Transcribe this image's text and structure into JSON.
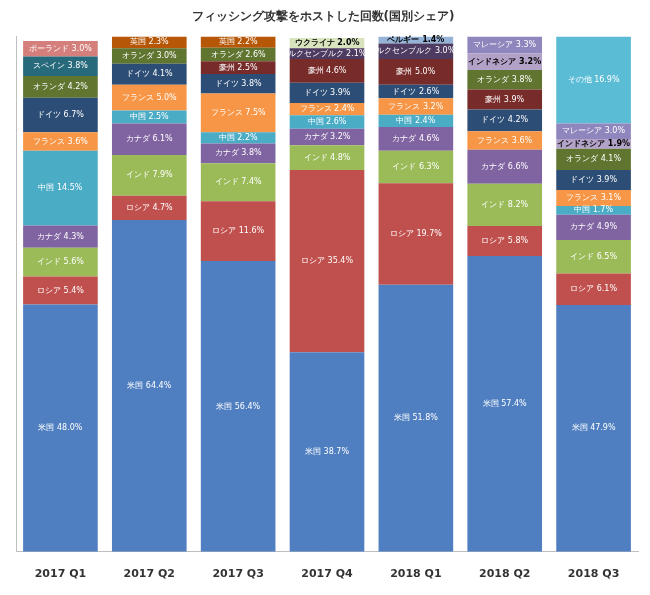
{
  "chart_data": {
    "type": "bar",
    "title": "フィッシング攻撃をホストした回数(国別シェア)",
    "categories": [
      "2017 Q1",
      "2017 Q2",
      "2017 Q3",
      "2017 Q4",
      "2018 Q1",
      "2018 Q2",
      "2018 Q3"
    ],
    "stacked": true,
    "data_labels": true,
    "grid": false,
    "tick_labels": "x",
    "ylim": [
      0,
      100
    ],
    "yticks": [
      0,
      100
    ],
    "series": [
      {
        "name": "米国",
        "color": "#4f7fc0",
        "values": [
          48.0,
          64.4,
          56.4,
          38.7,
          51.8,
          57.4,
          47.9
        ],
        "value_labels": [
          "米国 48.0%",
          "米国 64.4%",
          "米国 56.4%",
          "米国 38.7%",
          "米国 51.8%",
          "米国 57.4%",
          "米国 47.9%"
        ]
      },
      {
        "name": "ロシア",
        "color": "#c0504d",
        "values": [
          5.4,
          4.7,
          11.6,
          35.4,
          19.7,
          5.8,
          6.1
        ],
        "value_labels": [
          "ロシア 5.4%",
          "ロシア 4.7%",
          "ロシア 11.6%",
          "ロシア 35.4%",
          "ロシア 19.7%",
          "ロシア 5.8%",
          "ロシア 6.1%"
        ]
      },
      {
        "name": "インド",
        "color": "#9bbb59",
        "values": [
          5.6,
          7.9,
          7.4,
          4.8,
          6.3,
          8.2,
          6.5
        ],
        "value_labels": [
          "インド 5.6%",
          "インド 7.9%",
          "インド 7.4%",
          "インド 4.8%",
          "インド 6.3%",
          "インド 8.2%",
          "インド 6.5%"
        ]
      },
      {
        "name": "カナダ",
        "color": "#8064a2",
        "values": [
          4.3,
          6.1,
          3.8,
          3.2,
          4.6,
          6.6,
          4.9
        ],
        "value_labels": [
          "カナダ 4.3%",
          "カナダ 6.1%",
          "カナダ 3.8%",
          "カナダ 3.2%",
          "カナダ 4.6%",
          "カナダ 6.6%",
          "カナダ 4.9%"
        ]
      },
      {
        "name": "中国",
        "color": "#4bacc6",
        "values": [
          14.5,
          2.5,
          2.2,
          2.6,
          2.4,
          null,
          1.7
        ],
        "value_labels": [
          "中国 14.5%",
          "中国 2.5%",
          "中国 2.2%",
          "中国 2.6%",
          "中国 2.4%",
          null,
          "中国 1.7%"
        ]
      },
      {
        "name": "フランス",
        "color": "#f79646",
        "values": [
          3.6,
          5.0,
          7.5,
          2.4,
          3.2,
          3.6,
          3.1
        ],
        "value_labels": [
          "フランス 3.6%",
          "フランス 5.0%",
          "フランス 7.5%",
          "フランス 2.4%",
          "フランス 3.2%",
          "フランス 3.6%",
          "フランス 3.1%"
        ]
      },
      {
        "name": "ドイツ",
        "color": "#2c4d75",
        "values": [
          6.7,
          4.1,
          3.8,
          3.9,
          2.6,
          4.2,
          3.9
        ],
        "value_labels": [
          "ドイツ 6.7%",
          "ドイツ 4.1%",
          "ドイツ 3.8%",
          "ドイツ 3.9%",
          "ドイツ 2.6%",
          "ドイツ 4.2%",
          "ドイツ 3.9%"
        ]
      },
      {
        "name": "豪州",
        "color": "#772c2a",
        "values": [
          null,
          null,
          2.5,
          4.6,
          5.0,
          3.9,
          null
        ],
        "value_labels": [
          null,
          null,
          "豪州 2.5%",
          "豪州 4.6%",
          "豪州 5.0%",
          "豪州 3.9%",
          null
        ]
      },
      {
        "name": "オランダ",
        "color": "#5f7530",
        "values": [
          4.2,
          3.0,
          2.6,
          null,
          null,
          3.8,
          4.1
        ],
        "value_labels": [
          "オランダ 4.2%",
          "オランダ 3.0%",
          "オランダ 2.6%",
          null,
          null,
          "オランダ 3.8%",
          "オランダ 4.1%"
        ]
      },
      {
        "name": "ルクセンブルク",
        "color": "#4d3b62",
        "values": [
          null,
          null,
          null,
          2.1,
          3.0,
          null,
          null
        ],
        "value_labels": [
          null,
          null,
          null,
          "ルクセンブルク 2.1%",
          "ルクセンブルク 3.0%",
          null,
          null
        ]
      },
      {
        "name": "スペイン",
        "color": "#276a7c",
        "values": [
          3.8,
          null,
          null,
          null,
          null,
          null,
          null
        ],
        "value_labels": [
          "スペイン 3.8%",
          null,
          null,
          null,
          null,
          null,
          null
        ]
      },
      {
        "name": "英国",
        "color": "#b65708",
        "values": [
          null,
          2.3,
          2.2,
          null,
          null,
          null,
          null
        ],
        "value_labels": [
          null,
          "英国 2.3%",
          "英国 2.2%",
          null,
          null,
          null,
          null
        ]
      },
      {
        "name": "ポーランド",
        "color": "#d47f7c",
        "values": [
          3.0,
          null,
          null,
          null,
          null,
          null,
          null
        ],
        "value_labels": [
          "ポーランド 3.0%",
          null,
          null,
          null,
          null,
          null,
          null
        ]
      },
      {
        "name": "ウクライナ",
        "color": "#d7e4bd",
        "values": [
          null,
          null,
          null,
          2.0,
          null,
          null,
          null
        ],
        "value_labels": [
          null,
          null,
          null,
          "ウクライナ 2.0%",
          null,
          null,
          null
        ]
      },
      {
        "name": "ベルギー",
        "color": "#95b3d7",
        "values": [
          null,
          null,
          null,
          null,
          1.4,
          null,
          null
        ],
        "value_labels": [
          null,
          null,
          null,
          null,
          "ベルギー 1.4%",
          null,
          null
        ]
      },
      {
        "name": "インドネシア",
        "color": "#b3a2c7",
        "values": [
          null,
          null,
          null,
          null,
          null,
          3.2,
          1.9
        ],
        "value_labels": [
          null,
          null,
          null,
          null,
          null,
          "インドネシア 3.2%",
          "インドネシア 1.9%"
        ]
      },
      {
        "name": "マレーシア",
        "color": "#8e86bd",
        "values": [
          null,
          null,
          null,
          null,
          null,
          3.3,
          3.0
        ],
        "value_labels": [
          null,
          null,
          null,
          null,
          null,
          "マレーシア 3.3%",
          "マレーシア 3.0%"
        ]
      },
      {
        "name": "その他",
        "color": "#5bbcd6",
        "values": [
          null,
          null,
          null,
          null,
          null,
          null,
          16.9
        ],
        "value_labels": [
          null,
          null,
          null,
          null,
          null,
          null,
          "その他 16.9%"
        ]
      }
    ]
  }
}
